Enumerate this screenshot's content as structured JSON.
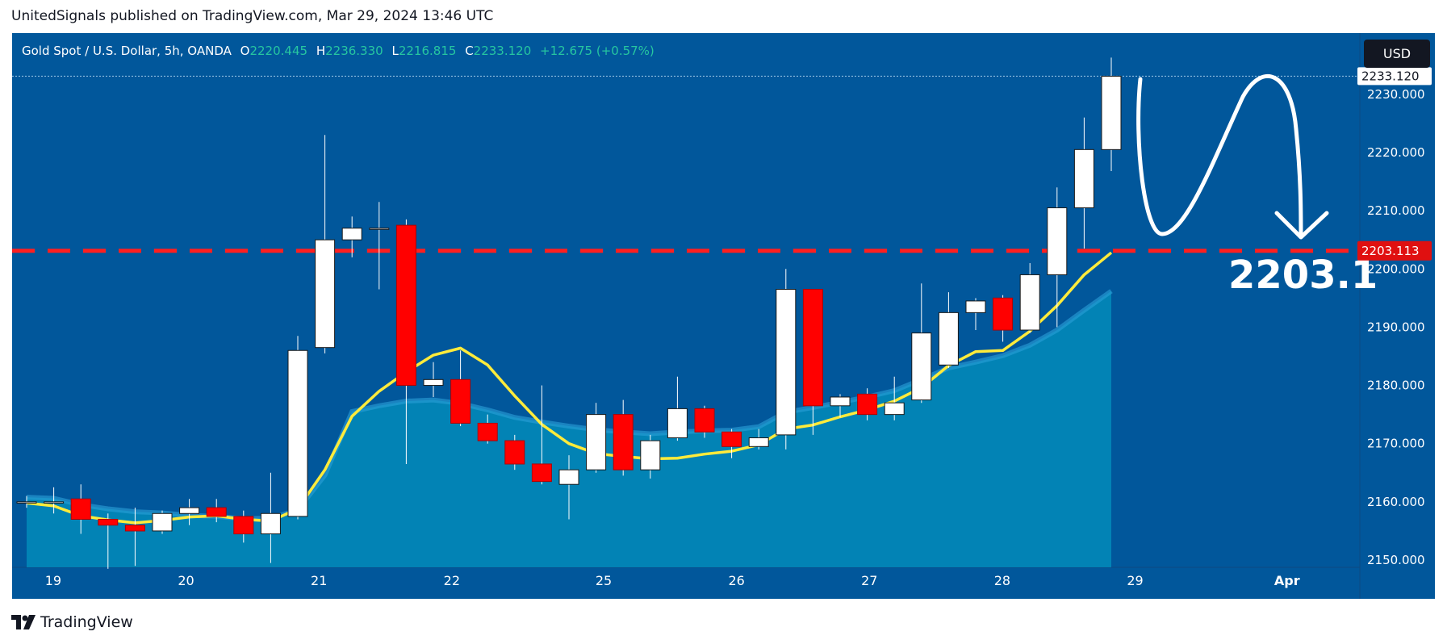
{
  "header": {
    "caption": "UnitedSignals published on TradingView.com, Mar 29, 2024 13:46 UTC"
  },
  "legend": {
    "symbol": "Gold Spot / U.S. Dollar, 5h, OANDA",
    "open_label": "O",
    "open": "2220.445",
    "high_label": "H",
    "high": "2236.330",
    "low_label": "L",
    "low": "2216.815",
    "close_label": "C",
    "close": "2233.120",
    "change": "+12.675 (+0.57%)"
  },
  "currency_button": "USD",
  "footer": {
    "brand": "TradingView",
    "logo_icon": "tradingview-logo-icon"
  },
  "colors": {
    "background": "#01579b",
    "bull": "#ffffff",
    "bear": "#ff0000",
    "ma": "#ffeb3b",
    "area_fill": "#0288b8",
    "level_line": "#ff1f1f"
  },
  "chart_data": {
    "type": "candlestick",
    "y_axis_ticks": [
      "2150.000",
      "2160.000",
      "2170.000",
      "2180.000",
      "2190.000",
      "2200.000",
      "2210.000",
      "2220.000",
      "2230.000"
    ],
    "ylim": [
      2149,
      2238
    ],
    "x_axis_ticks": [
      "19",
      "20",
      "21",
      "22",
      "25",
      "26",
      "27",
      "28",
      "29",
      "Apr"
    ],
    "price_label": "2233.120",
    "level_label": "2203.113",
    "level_value": 2203.113,
    "annotation_text": "2203.1",
    "candles": [
      {
        "o": 2160.0,
        "h": 2161.0,
        "l": 2159.0,
        "c": 2160.0
      },
      {
        "o": 2160.0,
        "h": 2162.5,
        "l": 2158.0,
        "c": 2160.0
      },
      {
        "o": 2160.5,
        "h": 2163.0,
        "l": 2154.5,
        "c": 2157.0
      },
      {
        "o": 2157.0,
        "h": 2158.0,
        "l": 2148.5,
        "c": 2156.0
      },
      {
        "o": 2156.0,
        "h": 2159.0,
        "l": 2149.0,
        "c": 2155.0
      },
      {
        "o": 2155.0,
        "h": 2158.5,
        "l": 2154.5,
        "c": 2158.0
      },
      {
        "o": 2158.0,
        "h": 2160.5,
        "l": 2156.0,
        "c": 2159.0
      },
      {
        "o": 2159.0,
        "h": 2160.5,
        "l": 2156.5,
        "c": 2157.5
      },
      {
        "o": 2157.5,
        "h": 2158.5,
        "l": 2153.0,
        "c": 2154.5
      },
      {
        "o": 2154.5,
        "h": 2165.0,
        "l": 2149.5,
        "c": 2158.0
      },
      {
        "o": 2157.5,
        "h": 2188.5,
        "l": 2157.0,
        "c": 2186.0
      },
      {
        "o": 2186.5,
        "h": 2223.0,
        "l": 2185.5,
        "c": 2205.0
      },
      {
        "o": 2205.0,
        "h": 2209.0,
        "l": 2202.0,
        "c": 2207.0
      },
      {
        "o": 2207.0,
        "h": 2211.5,
        "l": 2196.5,
        "c": 2207.0
      },
      {
        "o": 2207.5,
        "h": 2208.5,
        "l": 2166.5,
        "c": 2180.0
      },
      {
        "o": 2180.0,
        "h": 2184.0,
        "l": 2178.0,
        "c": 2181.0
      },
      {
        "o": 2181.0,
        "h": 2186.0,
        "l": 2173.0,
        "c": 2173.5
      },
      {
        "o": 2173.5,
        "h": 2175.0,
        "l": 2170.0,
        "c": 2170.5
      },
      {
        "o": 2170.5,
        "h": 2171.5,
        "l": 2165.5,
        "c": 2166.5
      },
      {
        "o": 2166.5,
        "h": 2180.0,
        "l": 2163.0,
        "c": 2163.5
      },
      {
        "o": 2163.0,
        "h": 2168.0,
        "l": 2157.0,
        "c": 2165.5
      },
      {
        "o": 2165.5,
        "h": 2177.0,
        "l": 2165.0,
        "c": 2175.0
      },
      {
        "o": 2175.0,
        "h": 2177.5,
        "l": 2164.5,
        "c": 2165.5
      },
      {
        "o": 2165.5,
        "h": 2171.5,
        "l": 2164.0,
        "c": 2170.5
      },
      {
        "o": 2171.0,
        "h": 2181.5,
        "l": 2170.5,
        "c": 2176.0
      },
      {
        "o": 2176.0,
        "h": 2176.5,
        "l": 2171.0,
        "c": 2172.0
      },
      {
        "o": 2172.0,
        "h": 2172.5,
        "l": 2167.5,
        "c": 2169.5
      },
      {
        "o": 2169.5,
        "h": 2172.5,
        "l": 2169.0,
        "c": 2171.0
      },
      {
        "o": 2171.5,
        "h": 2200.0,
        "l": 2169.0,
        "c": 2196.5
      },
      {
        "o": 2196.5,
        "h": 2196.5,
        "l": 2171.5,
        "c": 2176.5
      },
      {
        "o": 2176.5,
        "h": 2178.5,
        "l": 2174.5,
        "c": 2178.0
      },
      {
        "o": 2178.5,
        "h": 2179.5,
        "l": 2174.0,
        "c": 2175.0
      },
      {
        "o": 2175.0,
        "h": 2181.5,
        "l": 2174.0,
        "c": 2177.0
      },
      {
        "o": 2177.5,
        "h": 2197.5,
        "l": 2177.0,
        "c": 2189.0
      },
      {
        "o": 2183.5,
        "h": 2196.0,
        "l": 2183.0,
        "c": 2192.5
      },
      {
        "o": 2192.5,
        "h": 2195.0,
        "l": 2189.5,
        "c": 2194.5
      },
      {
        "o": 2195.0,
        "h": 2195.5,
        "l": 2187.5,
        "c": 2189.5
      },
      {
        "o": 2189.5,
        "h": 2201.0,
        "l": 2189.0,
        "c": 2199.0
      },
      {
        "o": 2199.0,
        "h": 2214.0,
        "l": 2190.0,
        "c": 2210.5
      },
      {
        "o": 2210.5,
        "h": 2226.0,
        "l": 2203.5,
        "c": 2220.5
      },
      {
        "o": 2220.5,
        "h": 2236.3,
        "l": 2216.8,
        "c": 2233.1
      }
    ],
    "ma_series": [
      2159.8,
      2159.3,
      2157.6,
      2156.9,
      2156.4,
      2156.8,
      2157.4,
      2157.6,
      2157.0,
      2156.7,
      2158.8,
      2165.5,
      2174.7,
      2179.0,
      2182.3,
      2185.2,
      2186.4,
      2183.5,
      2178.2,
      2173.3,
      2170.0,
      2168.3,
      2167.8,
      2167.4,
      2167.5,
      2168.2,
      2168.7,
      2169.8,
      2172.5,
      2173.2,
      2174.6,
      2175.8,
      2177.3,
      2179.6,
      2183.4,
      2185.8,
      2186.0,
      2189.3,
      2193.7,
      2199.0,
      2202.8
    ],
    "area_series": [
      2160.8,
      2160.6,
      2159.5,
      2158.8,
      2158.3,
      2158.1,
      2157.7,
      2157.5,
      2157.1,
      2157.2,
      2158.6,
      2164.6,
      2175.5,
      2176.5,
      2177.3,
      2177.5,
      2176.9,
      2175.8,
      2174.5,
      2173.7,
      2173.0,
      2172.4,
      2172.0,
      2171.7,
      2172.0,
      2172.2,
      2172.3,
      2172.9,
      2175.4,
      2176.2,
      2177.1,
      2178.0,
      2179.1,
      2181.0,
      2183.0,
      2184.0,
      2185.1,
      2186.9,
      2189.5,
      2192.9,
      2196.2
    ]
  }
}
